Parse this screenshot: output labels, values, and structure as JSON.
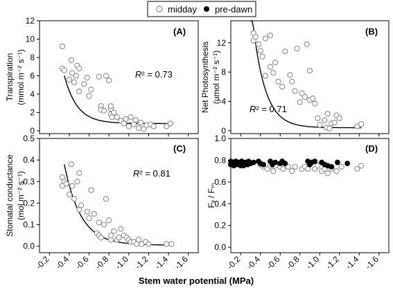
{
  "legend": {
    "items": [
      {
        "label": "midday",
        "marker": "open-circle",
        "color": "#8c8c8c"
      },
      {
        "label": "pre-dawn",
        "marker": "filled-circle",
        "color": "#000000"
      }
    ]
  },
  "xlabel": "Stem water potential (MPa)",
  "chart_data": [
    {
      "id": "A",
      "panel_label": "(A)",
      "type": "scatter",
      "ylabel_line1": "Transpiration",
      "ylabel_line2": "(mmol m⁻² s⁻¹)",
      "r2_label": "R² = 0.73",
      "xlim": [
        -0.1,
        -1.7
      ],
      "xticks": [
        -0.2,
        -0.4,
        -0.6,
        -0.8,
        -1.0,
        -1.2,
        -1.4,
        -1.6
      ],
      "xtick_labels": [
        "-0.2",
        "-0.4",
        "-0.6",
        "-0.8",
        "-1.0",
        "-1.2",
        "-1.4",
        "-1.6"
      ],
      "ylim": [
        -0.3,
        12
      ],
      "yticks": [
        0,
        2,
        4,
        6,
        8,
        10,
        12
      ],
      "ytick_labels": [
        "0",
        "2",
        "4",
        "6",
        "8",
        "10",
        "12"
      ],
      "show_xtick_labels": false,
      "fit": {
        "a": 77.33,
        "b": 7.7,
        "c": 0.8,
        "xrange": [
          -0.35,
          -1.45
        ]
      },
      "series": [
        {
          "name": "midday",
          "marker": "open",
          "points": [
            [
              -0.33,
              9.2
            ],
            [
              -0.33,
              6.8
            ],
            [
              -0.35,
              6.6
            ],
            [
              -0.4,
              5.6
            ],
            [
              -0.42,
              7.7
            ],
            [
              -0.43,
              6.3
            ],
            [
              -0.45,
              5.3
            ],
            [
              -0.47,
              6.0
            ],
            [
              -0.48,
              7.1
            ],
            [
              -0.5,
              4.3
            ],
            [
              -0.5,
              6.8
            ],
            [
              -0.55,
              5.1
            ],
            [
              -0.58,
              5.8
            ],
            [
              -0.6,
              3.8
            ],
            [
              -0.62,
              4.5
            ],
            [
              -0.7,
              5.9
            ],
            [
              -0.72,
              2.7
            ],
            [
              -0.72,
              2.3
            ],
            [
              -0.75,
              2.2
            ],
            [
              -0.77,
              6.0
            ],
            [
              -0.8,
              5.5
            ],
            [
              -0.82,
              1.8
            ],
            [
              -0.82,
              2.4
            ],
            [
              -0.82,
              2.7
            ],
            [
              -0.83,
              1.5
            ],
            [
              -0.85,
              2.0
            ],
            [
              -0.88,
              1.5
            ],
            [
              -0.92,
              1.1
            ],
            [
              -0.95,
              0.8
            ],
            [
              -0.97,
              1.3
            ],
            [
              -1.0,
              0.5
            ],
            [
              -1.02,
              1.5
            ],
            [
              -1.05,
              0.7
            ],
            [
              -1.07,
              1.2
            ],
            [
              -1.1,
              0.3
            ],
            [
              -1.12,
              0.9
            ],
            [
              -1.15,
              0.2
            ],
            [
              -1.18,
              0.6
            ],
            [
              -1.22,
              0.7
            ],
            [
              -1.25,
              0.5
            ],
            [
              -1.38,
              0.5
            ],
            [
              -1.42,
              0.8
            ]
          ]
        }
      ]
    },
    {
      "id": "B",
      "panel_label": "(B)",
      "type": "scatter",
      "ylabel_line1": "Net Photosynthesis",
      "ylabel_line2": "(µmol m⁻² s⁻¹)",
      "r2_label": "R² = 0.71",
      "xlim": [
        -0.1,
        -1.7
      ],
      "xticks": [
        -0.2,
        -0.4,
        -0.6,
        -0.8,
        -1.0,
        -1.2,
        -1.4,
        -1.6
      ],
      "xtick_labels": [
        "-0.2",
        "-0.4",
        "-0.6",
        "-0.8",
        "-1.0",
        "-1.2",
        "-1.4",
        "-1.6"
      ],
      "ylim": [
        -0.4,
        15
      ],
      "yticks": [
        0,
        4,
        8,
        12
      ],
      "ytick_labels": [
        "0",
        "4",
        "8",
        "12"
      ],
      "show_xtick_labels": false,
      "fit": {
        "a": 190.44,
        "b": 8.0,
        "c": 0.4,
        "xrange": [
          -0.3,
          -1.42
        ]
      },
      "series": [
        {
          "name": "midday",
          "marker": "open",
          "points": [
            [
              -0.33,
              12.3
            ],
            [
              -0.33,
              13.3
            ],
            [
              -0.35,
              12.8
            ],
            [
              -0.38,
              11.8
            ],
            [
              -0.4,
              10.9
            ],
            [
              -0.42,
              10.1
            ],
            [
              -0.45,
              12.6
            ],
            [
              -0.45,
              7.5
            ],
            [
              -0.5,
              8.7
            ],
            [
              -0.5,
              13.0
            ],
            [
              -0.53,
              7.9
            ],
            [
              -0.55,
              9.3
            ],
            [
              -0.58,
              6.7
            ],
            [
              -0.62,
              6.0
            ],
            [
              -0.65,
              10.8
            ],
            [
              -0.7,
              7.6
            ],
            [
              -0.72,
              6.7
            ],
            [
              -0.75,
              5.4
            ],
            [
              -0.77,
              11.2
            ],
            [
              -0.8,
              3.9
            ],
            [
              -0.82,
              5.1
            ],
            [
              -0.85,
              4.6
            ],
            [
              -0.87,
              11.8
            ],
            [
              -0.9,
              4.2
            ],
            [
              -0.9,
              8.2
            ],
            [
              -0.93,
              4.4
            ],
            [
              -0.95,
              3.7
            ],
            [
              -0.98,
              1.7
            ],
            [
              -1.0,
              0.8
            ],
            [
              -1.05,
              1.4
            ],
            [
              -1.07,
              0.4
            ],
            [
              -1.08,
              2.3
            ],
            [
              -1.1,
              0.3
            ],
            [
              -1.12,
              1.0
            ],
            [
              -1.15,
              1.1
            ],
            [
              -1.17,
              2.1
            ],
            [
              -1.2,
              1.7
            ],
            [
              -1.38,
              0.6
            ],
            [
              -1.42,
              0.9
            ]
          ]
        }
      ]
    },
    {
      "id": "C",
      "panel_label": "(C)",
      "type": "scatter",
      "ylabel_line1": "Stomatal conductance",
      "ylabel_line2": "(mol m⁻² s⁻¹)",
      "r2_label": "R² = 0.81",
      "xlim": [
        -0.1,
        -1.7
      ],
      "xticks": [
        -0.2,
        -0.4,
        -0.6,
        -0.8,
        -1.0,
        -1.2,
        -1.4,
        -1.6
      ],
      "xtick_labels": [
        "-0.2",
        "-0.4",
        "-0.6",
        "-0.8",
        "-1.0",
        "-1.2",
        "-1.4",
        "-1.6"
      ],
      "ylim": [
        -0.03,
        0.5
      ],
      "yticks": [
        0.0,
        0.1,
        0.2,
        0.3,
        0.4,
        0.5
      ],
      "ytick_labels": [
        "0.0",
        "0.1",
        "0.2",
        "0.3",
        "0.4",
        "0.5"
      ],
      "show_xtick_labels": true,
      "fit": {
        "a": 3.06,
        "b": 6.0,
        "c": 0.005,
        "xrange": [
          -0.35,
          -1.45
        ]
      },
      "series": [
        {
          "name": "midday",
          "marker": "open",
          "points": [
            [
              -0.33,
              0.28
            ],
            [
              -0.33,
              0.32
            ],
            [
              -0.35,
              0.3
            ],
            [
              -0.37,
              0.29
            ],
            [
              -0.4,
              0.24
            ],
            [
              -0.42,
              0.38
            ],
            [
              -0.43,
              0.28
            ],
            [
              -0.45,
              0.22
            ],
            [
              -0.48,
              0.3
            ],
            [
              -0.5,
              0.34
            ],
            [
              -0.5,
              0.17
            ],
            [
              -0.52,
              0.19
            ],
            [
              -0.58,
              0.16
            ],
            [
              -0.6,
              0.13
            ],
            [
              -0.62,
              0.26
            ],
            [
              -0.65,
              0.15
            ],
            [
              -0.68,
              0.06
            ],
            [
              -0.7,
              0.11
            ],
            [
              -0.7,
              0.05
            ],
            [
              -0.72,
              0.04
            ],
            [
              -0.75,
              0.1
            ],
            [
              -0.77,
              0.22
            ],
            [
              -0.8,
              0.12
            ],
            [
              -0.82,
              0.03
            ],
            [
              -0.82,
              0.05
            ],
            [
              -0.85,
              0.07
            ],
            [
              -0.88,
              0.03
            ],
            [
              -0.9,
              0.04
            ],
            [
              -0.92,
              0.08
            ],
            [
              -0.95,
              0.05
            ],
            [
              -0.98,
              0.04
            ],
            [
              -1.0,
              0.03
            ],
            [
              -1.02,
              0.02
            ],
            [
              -1.05,
              0.02
            ],
            [
              -1.08,
              0.01
            ],
            [
              -1.1,
              0.03
            ],
            [
              -1.13,
              0.01
            ],
            [
              -1.17,
              0.02
            ],
            [
              -1.2,
              0.01
            ],
            [
              -1.38,
              0.01
            ],
            [
              -1.43,
              0.01
            ]
          ]
        }
      ]
    },
    {
      "id": "D",
      "panel_label": "(D)",
      "type": "scatter",
      "ylabel_line1": "Fᵥ / Fₘ",
      "xlim": [
        -0.1,
        -1.7
      ],
      "xticks": [
        -0.2,
        -0.4,
        -0.6,
        -0.8,
        -1.0,
        -1.2,
        -1.4,
        -1.6
      ],
      "xtick_labels": [
        "-0.2",
        "-0.4",
        "-0.6",
        "-0.8",
        "-1.0",
        "-1.2",
        "-1.4",
        "-1.6"
      ],
      "ylim": [
        -0.05,
        1.0
      ],
      "yticks": [
        0.0,
        0.2,
        0.4,
        0.6,
        0.8,
        1.0
      ],
      "ytick_labels": [
        "0.0",
        "0.2",
        "0.4",
        "0.6",
        "0.8",
        "1.0"
      ],
      "show_xtick_labels": true,
      "series": [
        {
          "name": "midday",
          "marker": "open",
          "points": [
            [
              -0.4,
              0.76
            ],
            [
              -0.43,
              0.74
            ],
            [
              -0.47,
              0.72
            ],
            [
              -0.5,
              0.75
            ],
            [
              -0.53,
              0.7
            ],
            [
              -0.55,
              0.75
            ],
            [
              -0.6,
              0.74
            ],
            [
              -0.63,
              0.72
            ],
            [
              -0.68,
              0.74
            ],
            [
              -0.72,
              0.7
            ],
            [
              -0.75,
              0.74
            ],
            [
              -0.82,
              0.72
            ],
            [
              -0.85,
              0.74
            ],
            [
              -0.88,
              0.72
            ],
            [
              -0.9,
              0.76
            ],
            [
              -0.95,
              0.72
            ],
            [
              -0.98,
              0.75
            ],
            [
              -1.02,
              0.7
            ],
            [
              -1.05,
              0.72
            ],
            [
              -1.08,
              0.68
            ],
            [
              -1.12,
              0.72
            ],
            [
              -1.17,
              0.7
            ],
            [
              -1.22,
              0.74
            ],
            [
              -1.38,
              0.72
            ],
            [
              -1.42,
              0.75
            ]
          ]
        },
        {
          "name": "pre-dawn",
          "marker": "filled",
          "points": [
            [
              -0.1,
              0.79
            ],
            [
              -0.1,
              0.76
            ],
            [
              -0.12,
              0.78
            ],
            [
              -0.13,
              0.75
            ],
            [
              -0.15,
              0.79
            ],
            [
              -0.16,
              0.76
            ],
            [
              -0.18,
              0.78
            ],
            [
              -0.2,
              0.75
            ],
            [
              -0.21,
              0.79
            ],
            [
              -0.22,
              0.77
            ],
            [
              -0.23,
              0.75
            ],
            [
              -0.25,
              0.78
            ],
            [
              -0.27,
              0.76
            ],
            [
              -0.28,
              0.79
            ],
            [
              -0.3,
              0.77
            ],
            [
              -0.33,
              0.78
            ],
            [
              -0.38,
              0.79
            ],
            [
              -0.4,
              0.77
            ],
            [
              -0.43,
              0.76
            ],
            [
              -0.5,
              0.79
            ],
            [
              -0.52,
              0.76
            ],
            [
              -0.55,
              0.78
            ],
            [
              -0.6,
              0.77
            ],
            [
              -0.62,
              0.79
            ],
            [
              -0.65,
              0.77
            ],
            [
              -0.88,
              0.79
            ],
            [
              -0.9,
              0.76
            ],
            [
              -0.92,
              0.78
            ],
            [
              -0.95,
              0.79
            ],
            [
              -1.02,
              0.78
            ],
            [
              -1.05,
              0.76
            ],
            [
              -1.08,
              0.75
            ],
            [
              -1.12,
              0.74
            ],
            [
              -1.18,
              0.78
            ],
            [
              -1.28,
              0.77
            ]
          ]
        }
      ]
    }
  ]
}
